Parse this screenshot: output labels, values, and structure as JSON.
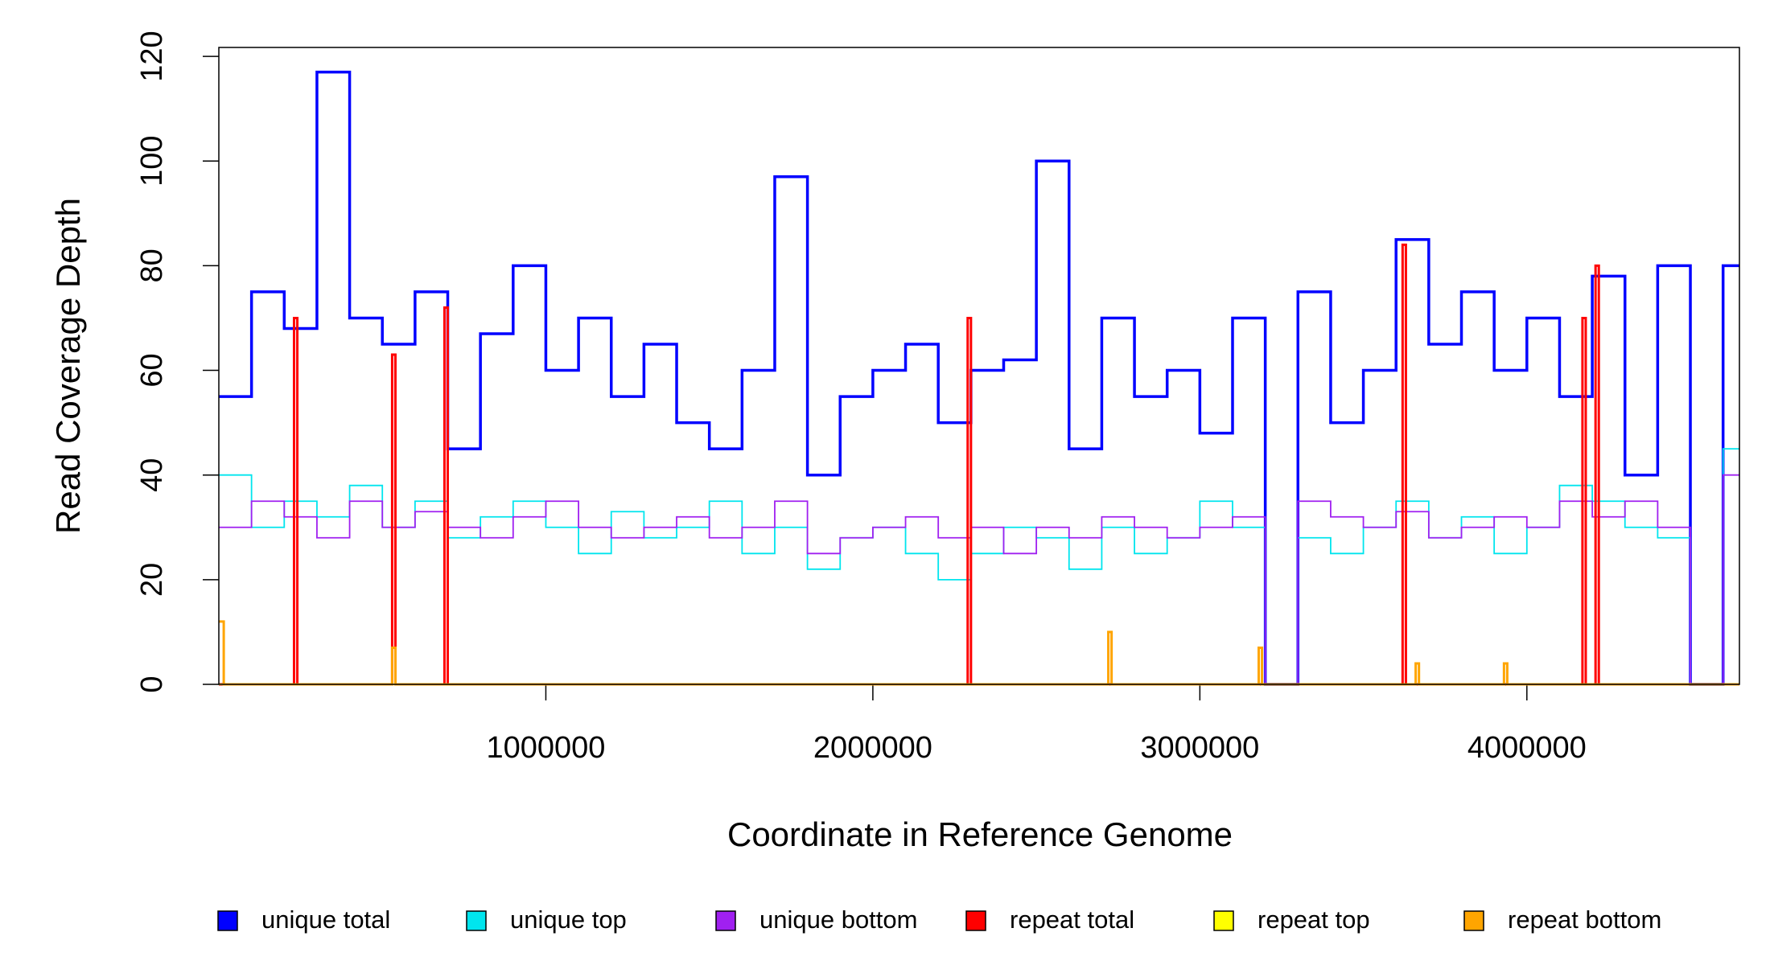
{
  "chart_data": {
    "type": "step",
    "xlabel": "Coordinate in Reference Genome",
    "ylabel": "Read Coverage Depth",
    "xlim": [
      0,
      4650000
    ],
    "ylim": [
      0,
      121.7
    ],
    "xticks": [
      1000000,
      2000000,
      3000000,
      4000000
    ],
    "yticks": [
      0,
      20,
      40,
      60,
      80,
      100,
      120
    ],
    "legend_position": "bottom",
    "x": [
      0,
      100000,
      200000,
      300000,
      400000,
      500000,
      600000,
      700000,
      800000,
      900000,
      1000000,
      1100000,
      1200000,
      1300000,
      1400000,
      1500000,
      1600000,
      1700000,
      1800000,
      1900000,
      2000000,
      2100000,
      2200000,
      2300000,
      2400000,
      2500000,
      2600000,
      2700000,
      2800000,
      2900000,
      3000000,
      3100000,
      3200000,
      3300000,
      3400000,
      3500000,
      3600000,
      3700000,
      3800000,
      3900000,
      4000000,
      4100000,
      4200000,
      4300000,
      4400000,
      4500000,
      4600000
    ],
    "series": [
      {
        "name": "unique total",
        "color": "#0000ff",
        "width": 3.5,
        "values": [
          55,
          75,
          68,
          117,
          70,
          65,
          75,
          45,
          67,
          80,
          60,
          70,
          55,
          65,
          50,
          45,
          60,
          97,
          40,
          55,
          60,
          65,
          50,
          60,
          62,
          100,
          45,
          70,
          55,
          60,
          48,
          70,
          0,
          75,
          50,
          60,
          85,
          65,
          75,
          60,
          70,
          55,
          78,
          40,
          80,
          0,
          80
        ]
      },
      {
        "name": "unique top",
        "color": "#00e5ee",
        "width": 1.8,
        "values": [
          40,
          30,
          35,
          32,
          38,
          30,
          35,
          28,
          32,
          35,
          30,
          25,
          33,
          28,
          30,
          35,
          25,
          30,
          22,
          28,
          30,
          25,
          20,
          25,
          30,
          28,
          22,
          30,
          25,
          28,
          35,
          30,
          0,
          28,
          25,
          30,
          35,
          28,
          32,
          25,
          30,
          38,
          35,
          30,
          28,
          0,
          45
        ]
      },
      {
        "name": "unique bottom",
        "color": "#a020f0",
        "width": 1.8,
        "values": [
          30,
          35,
          32,
          28,
          35,
          30,
          33,
          30,
          28,
          32,
          35,
          30,
          28,
          30,
          32,
          28,
          30,
          35,
          25,
          28,
          30,
          32,
          28,
          30,
          25,
          30,
          28,
          32,
          30,
          28,
          30,
          32,
          0,
          35,
          32,
          30,
          33,
          28,
          30,
          32,
          30,
          35,
          32,
          35,
          30,
          0,
          40
        ]
      },
      {
        "name": "repeat total",
        "color": "#ff0000",
        "width": 3,
        "x": [
          0,
          230000,
          240000,
          530000,
          540000,
          690000,
          700000,
          2290000,
          2300000,
          3620000,
          3630000,
          4170000,
          4180000,
          4210000,
          4220000
        ],
        "values": [
          0,
          70,
          0,
          63,
          0,
          72,
          0,
          70,
          0,
          84,
          0,
          70,
          0,
          80,
          0
        ]
      },
      {
        "name": "repeat top",
        "color": "#ffff00",
        "width": 2,
        "x": [
          0
        ],
        "values": [
          0
        ]
      },
      {
        "name": "repeat bottom",
        "color": "#ffa500",
        "width": 3,
        "x": [
          0,
          15000,
          530000,
          540000,
          2720000,
          2730000,
          3180000,
          3190000,
          3660000,
          3670000,
          3930000,
          3940000
        ],
        "values": [
          12,
          0,
          7,
          0,
          10,
          0,
          7,
          0,
          4,
          0,
          4,
          0
        ]
      }
    ]
  }
}
